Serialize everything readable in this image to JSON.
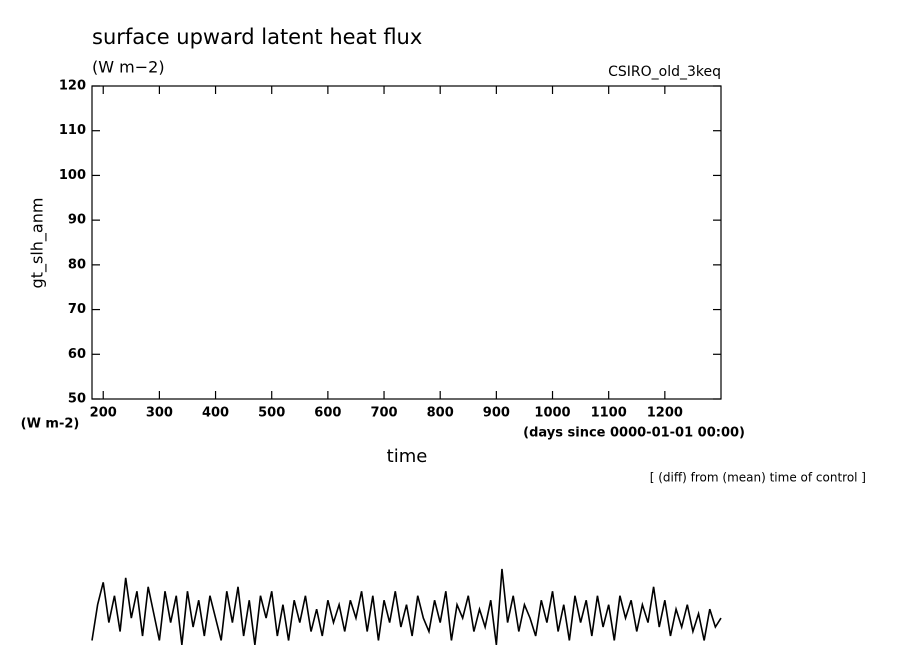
{
  "chart_data": {
    "type": "line",
    "title": "surface upward latent heat flux",
    "subtitle": "(W m−2)",
    "experiment": "CSIRO_old_3keq",
    "ylabel": "gt_slh_anm",
    "yunit": "(W m-2)",
    "xunit": "(days since 0000-01-01 00:00)",
    "xlabel": "time",
    "note": "[ (diff) from (mean) time of control ]",
    "color": "#000000",
    "xlim": [
      180,
      1300
    ],
    "ylim": [
      50,
      120
    ],
    "xticks": [
      200,
      300,
      400,
      500,
      600,
      700,
      800,
      900,
      1000,
      1100,
      1200
    ],
    "yticks": [
      50,
      60,
      70,
      80,
      90,
      100,
      110,
      120
    ],
    "x": [
      180,
      190,
      200,
      210,
      220,
      230,
      240,
      250,
      260,
      270,
      280,
      290,
      300,
      310,
      320,
      330,
      340,
      350,
      360,
      370,
      380,
      390,
      400,
      410,
      420,
      430,
      440,
      450,
      460,
      470,
      480,
      490,
      500,
      510,
      520,
      530,
      540,
      550,
      560,
      570,
      580,
      590,
      600,
      610,
      620,
      630,
      640,
      650,
      660,
      670,
      680,
      690,
      700,
      710,
      720,
      730,
      740,
      750,
      760,
      770,
      780,
      790,
      800,
      810,
      820,
      830,
      840,
      850,
      860,
      870,
      880,
      890,
      900,
      910,
      920,
      930,
      940,
      950,
      960,
      970,
      980,
      990,
      1000,
      1010,
      1020,
      1030,
      1040,
      1050,
      1060,
      1070,
      1080,
      1090,
      1100,
      1110,
      1120,
      1130,
      1140,
      1150,
      1160,
      1170,
      1180,
      1190,
      1200,
      1210,
      1220,
      1230,
      1240,
      1250,
      1260,
      1270,
      1280,
      1290,
      1300
    ],
    "values": [
      -4,
      4,
      9,
      0,
      6,
      -2,
      10,
      1,
      7,
      -3,
      8,
      2,
      -4,
      7,
      0,
      6,
      -5,
      7,
      -1,
      5,
      -3,
      6,
      1,
      -4,
      7,
      0,
      8,
      -3,
      5,
      -5,
      6,
      1,
      7,
      -3,
      4,
      -4,
      5,
      0,
      6,
      -2,
      3,
      -3,
      5,
      0,
      4,
      -2,
      5,
      1,
      7,
      -2,
      6,
      -4,
      5,
      0,
      7,
      -1,
      4,
      -3,
      6,
      1,
      -2,
      5,
      0,
      7,
      -4,
      4,
      1,
      6,
      -2,
      3,
      -1,
      5,
      -5,
      12,
      0,
      6,
      -2,
      4,
      1,
      -3,
      5,
      0,
      7,
      -2,
      4,
      -4,
      6,
      0,
      5,
      -3,
      6,
      -1,
      4,
      -4,
      6,
      1,
      5,
      -2,
      4,
      0,
      8,
      -1,
      5,
      -3,
      3,
      -1,
      4,
      -2,
      2,
      -4,
      3,
      -1,
      1
    ]
  }
}
